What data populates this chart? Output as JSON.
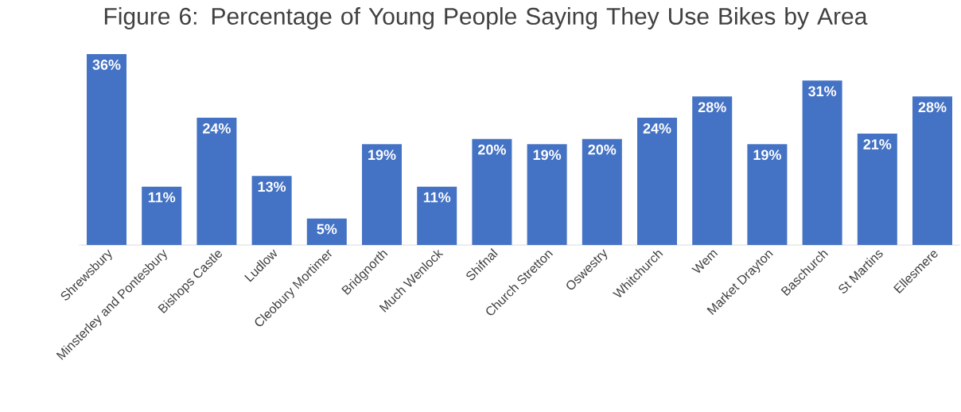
{
  "chart_data": {
    "type": "bar",
    "title": "Figure 6: Percentage of Young People Saying They Use Bikes by Area",
    "categories": [
      "Shrewsbury",
      "Minsterley and Pontesbury",
      "Bishops Castle",
      "Ludlow",
      "Cleobury Mortimer",
      "Bridgnorth",
      "Much Wenlock",
      "Shifnal",
      "Church Stretton",
      "Oswestry",
      "Whitchurch",
      "Wem",
      "Market Drayton",
      "Baschurch",
      "St Martins",
      "Ellesmere"
    ],
    "values": [
      36,
      11,
      24,
      13,
      5,
      19,
      11,
      20,
      19,
      20,
      24,
      28,
      19,
      31,
      21,
      28
    ],
    "value_labels": [
      "36%",
      "11%",
      "24%",
      "13%",
      "5%",
      "19%",
      "11%",
      "20%",
      "19%",
      "20%",
      "24%",
      "28%",
      "19%",
      "31%",
      "21%",
      "28%"
    ],
    "color": "#4472c4"
  }
}
